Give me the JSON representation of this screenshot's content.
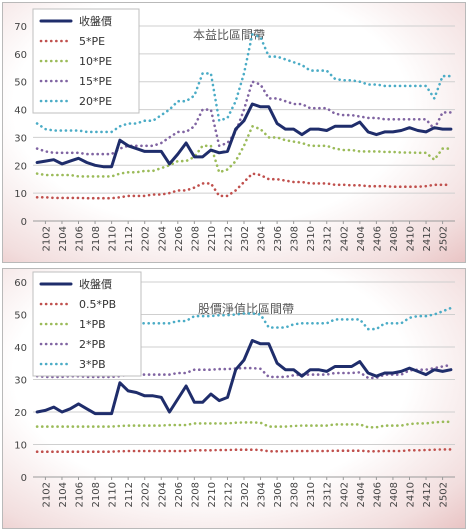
{
  "chart_data": [
    {
      "type": "line",
      "title": "本益比區間帶",
      "ylim": [
        0,
        70
      ],
      "yticks": [
        0,
        10,
        20,
        30,
        40,
        50,
        60,
        70
      ],
      "grid": true,
      "legend": "top-left",
      "xtick_labels": [
        "2102",
        "2104",
        "2106",
        "2108",
        "2110",
        "2112",
        "2202",
        "2204",
        "2206",
        "2208",
        "2210",
        "2212",
        "2302",
        "2304",
        "2306",
        "2308",
        "2310",
        "2312",
        "2402",
        "2404",
        "2406",
        "2408",
        "2410",
        "2412",
        "2502"
      ],
      "x": [
        "2101",
        "2102",
        "2103",
        "2104",
        "2105",
        "2106",
        "2107",
        "2108",
        "2109",
        "2110",
        "2111",
        "2112",
        "2201",
        "2202",
        "2203",
        "2204",
        "2205",
        "2206",
        "2207",
        "2208",
        "2209",
        "2210",
        "2211",
        "2212",
        "2301",
        "2302",
        "2303",
        "2304",
        "2305",
        "2306",
        "2307",
        "2308",
        "2309",
        "2310",
        "2311",
        "2312",
        "2401",
        "2402",
        "2403",
        "2404",
        "2405",
        "2406",
        "2407",
        "2408",
        "2409",
        "2410",
        "2411",
        "2412",
        "2501",
        "2502",
        "2503"
      ],
      "series": [
        {
          "name": "收盤價",
          "color": "#1f2d6b",
          "style": "solid",
          "values": [
            21,
            21.5,
            22,
            20.5,
            21.5,
            22.5,
            21,
            20,
            19.5,
            19.5,
            29,
            27,
            26,
            25,
            25,
            25,
            20.5,
            24,
            28,
            23,
            23,
            25.5,
            24.5,
            25,
            33,
            36,
            42,
            41,
            41,
            35,
            33,
            33,
            31,
            33,
            33,
            32.5,
            34,
            34,
            34,
            35.5,
            32,
            31,
            32,
            32,
            32.5,
            33.5,
            32.5,
            32,
            33.5,
            33,
            33
          ]
        },
        {
          "name": "5*PE",
          "color": "#c0504d",
          "style": "dotted",
          "values": [
            8.5,
            8.5,
            8.3,
            8.3,
            8.3,
            8.3,
            8.2,
            8.2,
            8.2,
            8.2,
            8.5,
            9,
            9,
            9,
            9.5,
            9.5,
            10,
            11,
            11,
            12,
            13.5,
            13.5,
            9,
            9,
            11,
            14,
            17,
            16.5,
            15,
            15,
            14.5,
            14,
            14,
            13.5,
            13.5,
            13.5,
            13,
            13,
            12.8,
            12.8,
            12.5,
            12.5,
            12.5,
            12.3,
            12.3,
            12.3,
            12.3,
            12.5,
            13,
            13,
            13
          ]
        },
        {
          "name": "10*PE",
          "color": "#9bbb59",
          "style": "dotted",
          "values": [
            17,
            16.5,
            16.5,
            16.5,
            16.5,
            16,
            16,
            16,
            16,
            16,
            17,
            17.5,
            17.5,
            18,
            18,
            19,
            20,
            21.5,
            21.5,
            23,
            27,
            27,
            17.5,
            18.5,
            21.5,
            27,
            34,
            33,
            30,
            30,
            29,
            28.5,
            28,
            27,
            27,
            27,
            26,
            25.5,
            25.5,
            25,
            25,
            25,
            24.8,
            24.8,
            24.6,
            24.6,
            24.5,
            24.5,
            22,
            26,
            26
          ]
        },
        {
          "name": "15*PE",
          "color": "#8064a2",
          "style": "dotted",
          "values": [
            26,
            25,
            24.5,
            24.5,
            24.5,
            24.5,
            24,
            24,
            24,
            24,
            26,
            27,
            27,
            27,
            27,
            28,
            30,
            32,
            32,
            34,
            40,
            40,
            27,
            28,
            32,
            40,
            50,
            49,
            44,
            44,
            43,
            42,
            42,
            40.5,
            40.5,
            40.5,
            38.5,
            38,
            38,
            37.5,
            37,
            37,
            36.5,
            36.5,
            36.5,
            36.5,
            36.5,
            36.5,
            33,
            39,
            39
          ]
        },
        {
          "name": "20*PE",
          "color": "#4bacc6",
          "style": "dotted",
          "values": [
            35,
            33,
            32.5,
            32.5,
            32.5,
            32.5,
            32,
            32,
            32,
            32,
            34,
            35,
            35,
            36,
            36,
            38,
            40,
            43,
            43,
            45,
            53,
            53,
            36,
            37,
            43,
            53,
            67,
            66,
            59,
            59,
            58,
            57,
            56,
            54,
            54,
            54,
            51,
            50.5,
            50.5,
            50,
            49,
            49,
            48.5,
            48.5,
            48.5,
            48.5,
            48.5,
            48.5,
            44,
            52,
            52
          ]
        }
      ]
    },
    {
      "type": "line",
      "title": "股價淨值比區間帶",
      "ylim": [
        0,
        60
      ],
      "yticks": [
        0,
        10,
        20,
        30,
        40,
        50,
        60
      ],
      "grid": true,
      "legend": "top-left",
      "xtick_labels": [
        "2102",
        "2104",
        "2106",
        "2108",
        "2110",
        "2112",
        "2202",
        "2204",
        "2206",
        "2208",
        "2210",
        "2212",
        "2302",
        "2304",
        "2306",
        "2308",
        "2310",
        "2312",
        "2402",
        "2404",
        "2406",
        "2408",
        "2410",
        "2412",
        "2502"
      ],
      "x": [
        "2101",
        "2102",
        "2103",
        "2104",
        "2105",
        "2106",
        "2107",
        "2108",
        "2109",
        "2110",
        "2111",
        "2112",
        "2201",
        "2202",
        "2203",
        "2204",
        "2205",
        "2206",
        "2207",
        "2208",
        "2209",
        "2210",
        "2211",
        "2212",
        "2301",
        "2302",
        "2303",
        "2304",
        "2305",
        "2306",
        "2307",
        "2308",
        "2309",
        "2310",
        "2311",
        "2312",
        "2401",
        "2402",
        "2403",
        "2404",
        "2405",
        "2406",
        "2407",
        "2408",
        "2409",
        "2410",
        "2411",
        "2412",
        "2501",
        "2502",
        "2503"
      ],
      "series": [
        {
          "name": "收盤價",
          "color": "#1f2d6b",
          "style": "solid",
          "values": [
            20,
            20.5,
            21.5,
            20,
            21,
            22.5,
            21,
            19.5,
            19.5,
            19.5,
            29,
            26.5,
            26,
            25,
            25,
            24.5,
            20,
            24,
            28,
            23,
            23,
            25.5,
            23.5,
            24.5,
            33,
            36,
            42,
            41,
            41,
            35,
            33,
            33,
            31,
            33,
            33,
            32.5,
            34,
            34,
            34,
            35.5,
            32,
            31,
            32,
            32,
            32.5,
            33.5,
            32.5,
            31.5,
            33,
            32.5,
            33
          ]
        },
        {
          "name": "0.5*PB",
          "color": "#c0504d",
          "style": "dotted",
          "values": [
            7.8,
            7.8,
            7.8,
            7.8,
            7.8,
            7.8,
            7.8,
            7.8,
            7.8,
            7.8,
            7.9,
            8,
            8,
            8,
            8,
            8,
            8,
            8,
            8,
            8.2,
            8.2,
            8.2,
            8.3,
            8.3,
            8.4,
            8.4,
            8.4,
            8.3,
            7.9,
            7.9,
            7.9,
            8,
            8,
            8,
            8,
            8,
            8.1,
            8.1,
            8.1,
            8.1,
            7.9,
            7.9,
            8,
            8,
            8,
            8.2,
            8.2,
            8.3,
            8.4,
            8.5,
            8.5
          ]
        },
        {
          "name": "1*PB",
          "color": "#9bbb59",
          "style": "dotted",
          "values": [
            15.5,
            15.5,
            15.5,
            15.5,
            15.5,
            15.5,
            15.5,
            15.5,
            15.5,
            15.5,
            15.7,
            15.8,
            15.8,
            15.8,
            15.8,
            15.8,
            16,
            16,
            16,
            16.5,
            16.5,
            16.5,
            16.5,
            16.5,
            16.7,
            16.8,
            16.8,
            16.7,
            15.5,
            15.5,
            15.5,
            15.7,
            15.8,
            15.8,
            15.8,
            15.8,
            16.2,
            16.2,
            16.2,
            16.2,
            15.3,
            15.3,
            15.8,
            15.8,
            15.8,
            16.3,
            16.5,
            16.5,
            16.8,
            17,
            17
          ]
        },
        {
          "name": "2*PB",
          "color": "#8064a2",
          "style": "dotted",
          "values": [
            31,
            30.8,
            30.8,
            30.8,
            31,
            31,
            30.8,
            30.8,
            30.8,
            30.8,
            31,
            31.5,
            31.5,
            31.5,
            31.5,
            31.5,
            31.5,
            32,
            32,
            33,
            33,
            33,
            33.2,
            33.2,
            33.4,
            33.5,
            33.5,
            33.3,
            30.8,
            30.8,
            30.8,
            31.3,
            31.5,
            31.5,
            31.5,
            31.5,
            32,
            32,
            32,
            32.2,
            30.5,
            30.5,
            31.5,
            31.5,
            31.5,
            32.8,
            33,
            33,
            33.5,
            34,
            34.5
          ]
        },
        {
          "name": "3*PB",
          "color": "#4bacc6",
          "style": "dotted",
          "values": [
            46,
            46,
            46,
            46,
            46,
            46,
            46,
            46,
            46,
            46,
            47,
            47.3,
            47.3,
            47.3,
            47.3,
            47.3,
            47.3,
            48,
            48,
            49.5,
            49.5,
            49.5,
            49.8,
            49.8,
            50,
            50.3,
            50.3,
            50,
            46,
            46,
            46,
            47,
            47.3,
            47.3,
            47.3,
            47.3,
            48.5,
            48.5,
            48.5,
            48.5,
            45.5,
            45.5,
            47.3,
            47.3,
            47.3,
            49,
            49.5,
            49.5,
            50,
            51,
            52
          ]
        }
      ]
    }
  ]
}
